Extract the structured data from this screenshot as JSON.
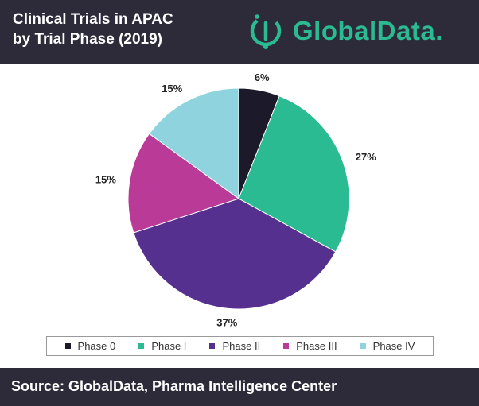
{
  "header": {
    "title_line1": "Clinical Trials in APAC",
    "title_line2": "by Trial Phase (2019)",
    "logo_text": "GlobalData.",
    "logo_icon": "globaldata-logo-icon",
    "colors": {
      "background": "#2d2b3a",
      "brand": "#2bbb92"
    }
  },
  "footer": {
    "source": "Source: GlobalData, Pharma Intelligence Center"
  },
  "chart_data": {
    "type": "pie",
    "title": "Clinical Trials in APAC by Trial Phase (2019)",
    "categories": [
      "Phase 0",
      "Phase I",
      "Phase II",
      "Phase III",
      "Phase IV"
    ],
    "values": [
      6,
      27,
      37,
      15,
      15
    ],
    "labels": [
      "6%",
      "27%",
      "37%",
      "15%",
      "15%"
    ],
    "colors": [
      "#1c1a2a",
      "#2bbb92",
      "#56308f",
      "#ba3a97",
      "#8fd3df"
    ],
    "unit": "%",
    "legend_position": "bottom"
  }
}
